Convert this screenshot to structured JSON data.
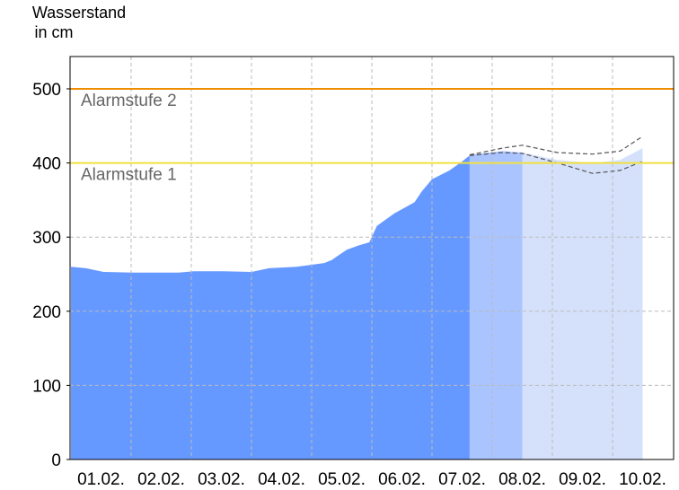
{
  "chart_data": {
    "type": "area",
    "ylabel_line1": "Wasserstand",
    "ylabel_line2": "in cm",
    "ylim": [
      0,
      545
    ],
    "yticks": [
      0,
      100,
      200,
      300,
      400,
      500
    ],
    "xtick_labels": [
      "01.02.",
      "02.02.",
      "03.02.",
      "04.02.",
      "05.02.",
      "06.02.",
      "07.02.",
      "08.02.",
      "09.02.",
      "10.02."
    ],
    "xlim": [
      "01.02. 00:00",
      "11.02. 00:00"
    ],
    "grid": true,
    "thresholds": [
      {
        "label": "Alarmstufe 1",
        "value": 400,
        "color": "#f0e040"
      },
      {
        "label": "Alarmstufe 2",
        "value": 500,
        "color": "#f08c00"
      }
    ],
    "measured": {
      "color": "#6699ff",
      "points": [
        [
          "01.02. 00:00",
          260
        ],
        [
          "01.02. 06:00",
          258
        ],
        [
          "01.02. 13:00",
          253
        ],
        [
          "02.02. 01:00",
          252
        ],
        [
          "02.02. 19:00",
          252
        ],
        [
          "03.02. 01:00",
          254
        ],
        [
          "03.02. 13:00",
          254
        ],
        [
          "04.02. 00:00",
          253
        ],
        [
          "04.02. 07:00",
          258
        ],
        [
          "04.02. 18:00",
          260
        ],
        [
          "05.02. 05:00",
          265
        ],
        [
          "05.02. 08:00",
          269
        ],
        [
          "05.02. 14:00",
          283
        ],
        [
          "05.02. 19:00",
          289
        ],
        [
          "05.02. 23:00",
          293
        ],
        [
          "06.02. 02:00",
          315
        ],
        [
          "06.02. 09:00",
          332
        ],
        [
          "06.02. 17:00",
          347
        ],
        [
          "06.02. 20:00",
          362
        ],
        [
          "07.02. 00:00",
          378
        ],
        [
          "07.02. 07:00",
          390
        ],
        [
          "07.02. 12:00",
          402
        ],
        [
          "07.02. 15:00",
          410
        ]
      ]
    },
    "forecast": {
      "near_color": "#aac4ff",
      "far_color": "#d5e1fb",
      "near_end": "08.02. 12:00",
      "times": [
        "07.02. 15:00",
        "08.02. 04:00",
        "08.02. 12:00",
        "09.02. 02:00",
        "09.02. 16:00",
        "10.02. 03:00",
        "10.02. 12:00"
      ],
      "values": [
        411,
        416,
        414,
        404,
        400,
        404,
        420
      ],
      "upper": [
        411,
        420,
        424,
        414,
        412,
        416,
        436
      ],
      "lower": [
        410,
        414,
        413,
        400,
        386,
        390,
        402
      ]
    }
  }
}
